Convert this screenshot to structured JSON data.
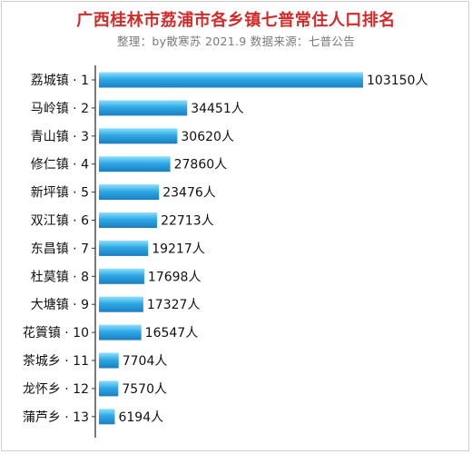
{
  "chart_data": {
    "type": "bar",
    "orientation": "horizontal",
    "title": "广西桂林市荔浦市各乡镇七普常住人口排名",
    "subtitle": "整理：by散寒苏  2021.9  数据来源：七普公告",
    "categories": [
      "荔城镇 · 1",
      "马岭镇 · 2",
      "青山镇 · 3",
      "修仁镇 · 4",
      "新坪镇 · 5",
      "双江镇 · 6",
      "东昌镇 · 7",
      "杜莫镇 · 8",
      "大塘镇 · 9",
      "花篢镇 · 10",
      "茶城乡 · 11",
      "龙怀乡 · 12",
      "蒲芦乡 · 13"
    ],
    "values": [
      103150,
      34451,
      30620,
      27860,
      23476,
      22713,
      19217,
      17698,
      17327,
      16547,
      7704,
      7570,
      6194
    ],
    "value_labels": [
      "103150人",
      "34451人",
      "30620人",
      "27860人",
      "23476人",
      "22713人",
      "19217人",
      "17698人",
      "17327人",
      "16547人",
      "7704人",
      "7570人",
      "6194人"
    ],
    "colors": {
      "bar_light": "#8fe0fb",
      "bar_mid": "#2fa9e6",
      "bar_dark": "#1a7fc0",
      "title": "#d42a2a",
      "subtitle": "#7a7a7a",
      "axis": "#333333"
    }
  }
}
